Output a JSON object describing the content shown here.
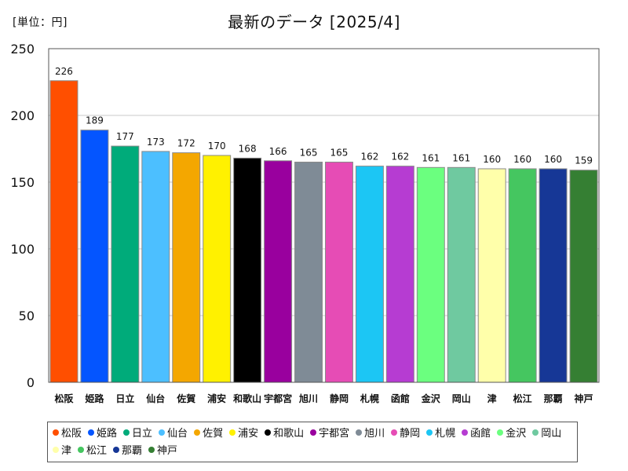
{
  "chart_data": {
    "type": "bar",
    "title": "最新のデータ [2025/4]",
    "unit_label": "[単位：円]",
    "xlabel": "",
    "ylabel": "",
    "ylim": [
      0,
      250
    ],
    "yticks": [
      0,
      50,
      100,
      150,
      200,
      250
    ],
    "grid": true,
    "legend_position": "bottom",
    "categories": [
      "松阪",
      "姫路",
      "日立",
      "仙台",
      "佐賀",
      "浦安",
      "和歌山",
      "宇都宮",
      "旭川",
      "静岡",
      "札幌",
      "函館",
      "金沢",
      "岡山",
      "津",
      "松江",
      "那覇",
      "神戸"
    ],
    "values": [
      226,
      189,
      177,
      173,
      172,
      170,
      168,
      166,
      165,
      165,
      162,
      162,
      161,
      161,
      160,
      160,
      160,
      159
    ],
    "colors": [
      "#FF4F00",
      "#0455FF",
      "#00AB7A",
      "#4CBFFF",
      "#F4A700",
      "#FFF100",
      "#000000",
      "#99009E",
      "#7F8B96",
      "#E64CB5",
      "#1CC6F4",
      "#B63CD2",
      "#6BFF7F",
      "#6FC9A0",
      "#FFFFAA",
      "#45C660",
      "#163796",
      "#357F33"
    ],
    "legend": [
      {
        "label": "松阪",
        "color": "#FF4F00"
      },
      {
        "label": "姫路",
        "color": "#0455FF"
      },
      {
        "label": "日立",
        "color": "#00AB7A"
      },
      {
        "label": "仙台",
        "color": "#4CBFFF"
      },
      {
        "label": "佐賀",
        "color": "#F4A700"
      },
      {
        "label": "浦安",
        "color": "#FFF100"
      },
      {
        "label": "和歌山",
        "color": "#000000"
      },
      {
        "label": "宇都宮",
        "color": "#99009E"
      },
      {
        "label": "旭川",
        "color": "#7F8B96"
      },
      {
        "label": "静岡",
        "color": "#E64CB5"
      },
      {
        "label": "札幌",
        "color": "#1CC6F4"
      },
      {
        "label": "函館",
        "color": "#B63CD2"
      },
      {
        "label": "金沢",
        "color": "#6BFF7F"
      },
      {
        "label": "岡山",
        "color": "#6FC9A0"
      },
      {
        "label": "津",
        "color": "#FFFFAA"
      },
      {
        "label": "松江",
        "color": "#45C660"
      },
      {
        "label": "那覇",
        "color": "#163796"
      },
      {
        "label": "神戸",
        "color": "#357F33"
      }
    ]
  }
}
